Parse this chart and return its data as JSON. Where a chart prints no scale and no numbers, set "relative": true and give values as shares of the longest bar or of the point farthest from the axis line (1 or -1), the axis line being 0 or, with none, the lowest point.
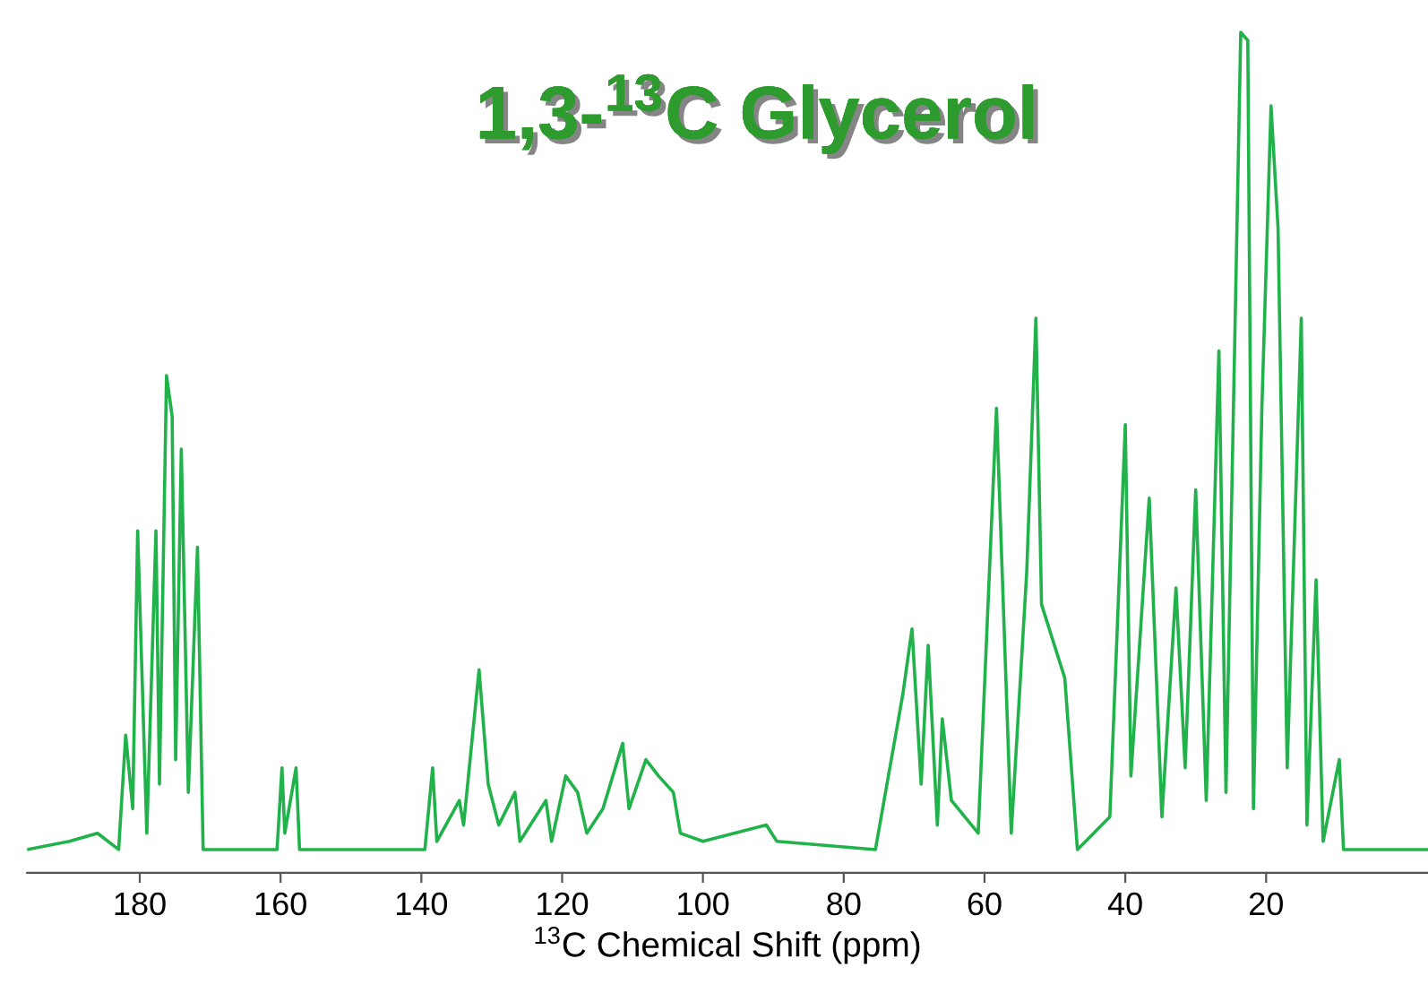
{
  "chart_data": {
    "type": "line",
    "title": "1,3-$^{13}$C Glycerol",
    "xlabel": "$^{13}$C Chemical Shift (ppm)",
    "relative": true,
    "xlim": [
      196,
      -3
    ],
    "xticks": [
      180,
      160,
      140,
      120,
      100,
      80,
      60,
      40,
      20
    ],
    "grid": false,
    "legend": false,
    "series": [
      {
        "color": "#22b24c",
        "x": [
          196,
          190,
          186,
          183,
          182,
          181,
          180.3,
          179,
          177.7,
          177.2,
          176.2,
          175.4,
          174.9,
          174.1,
          173.1,
          171.8,
          171,
          160.5,
          159.8,
          159.4,
          157.8,
          157.3,
          139.5,
          138.4,
          137.8,
          134.6,
          134,
          131.8,
          130.5,
          129,
          126.7,
          126,
          122.3,
          121.5,
          119.5,
          117.8,
          116.5,
          114.2,
          111.4,
          110.5,
          108.1,
          106.3,
          104.2,
          103.2,
          100,
          91,
          89.5,
          75.5,
          71.6,
          70.3,
          69,
          68,
          66.7,
          66,
          64.7,
          60.9,
          58.3,
          56.2,
          54,
          52.7,
          51.9,
          48.6,
          46.8,
          42.2,
          40,
          39.2,
          36.6,
          34.8,
          32.8,
          31.5,
          30,
          28.5,
          26.7,
          25.7,
          23.6,
          22.6,
          21.8,
          20.6,
          19.3,
          18.3,
          17,
          15,
          14.2,
          12.9,
          11.9,
          9.6,
          9,
          -3
        ],
        "values": [
          0.0,
          0.01,
          0.02,
          0.0,
          0.14,
          0.05,
          0.39,
          0.02,
          0.39,
          0.08,
          0.58,
          0.53,
          0.11,
          0.49,
          0.07,
          0.37,
          0.0,
          0.0,
          0.1,
          0.02,
          0.1,
          0.0,
          0.0,
          0.1,
          0.01,
          0.06,
          0.03,
          0.22,
          0.08,
          0.03,
          0.07,
          0.01,
          0.06,
          0.01,
          0.09,
          0.07,
          0.02,
          0.05,
          0.13,
          0.05,
          0.11,
          0.09,
          0.07,
          0.02,
          0.01,
          0.03,
          0.01,
          0.0,
          0.19,
          0.27,
          0.08,
          0.25,
          0.03,
          0.16,
          0.06,
          0.02,
          0.54,
          0.02,
          0.34,
          0.65,
          0.3,
          0.21,
          0.0,
          0.04,
          0.52,
          0.09,
          0.43,
          0.04,
          0.32,
          0.1,
          0.44,
          0.06,
          0.61,
          0.07,
          1.0,
          0.99,
          0.05,
          0.54,
          0.91,
          0.76,
          0.1,
          0.65,
          0.03,
          0.33,
          0.01,
          0.11,
          0.0,
          0.0
        ]
      }
    ]
  }
}
